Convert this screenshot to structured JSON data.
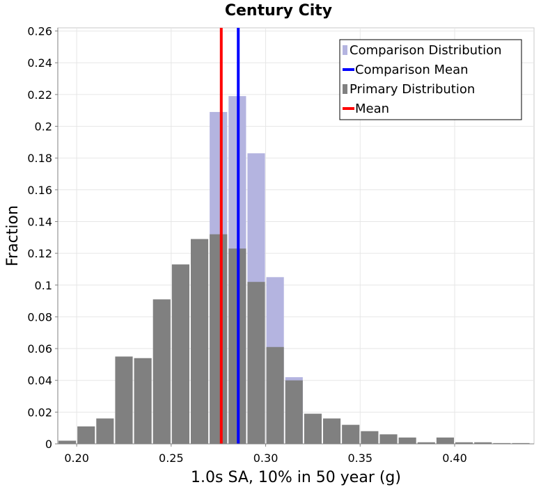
{
  "chart_data": {
    "type": "bar",
    "title": "Century City",
    "xlabel": "1.0s SA, 10% in 50 year (g)",
    "ylabel": "Fraction",
    "xlim": [
      0.19,
      0.442
    ],
    "ylim": [
      0,
      0.262
    ],
    "bin_width": 0.01,
    "x_ticks": [
      0.2,
      0.25,
      0.3,
      0.35,
      0.4
    ],
    "x_tick_labels": [
      "0.20",
      "0.25",
      "0.30",
      "0.35",
      "0.40"
    ],
    "y_ticks": [
      0,
      0.02,
      0.04,
      0.06,
      0.08,
      0.1,
      0.12,
      0.14,
      0.16,
      0.18,
      0.2,
      0.22,
      0.24,
      0.26
    ],
    "y_tick_labels": [
      "0",
      "0.02",
      "0.04",
      "0.06",
      "0.08",
      "0.1",
      "0.12",
      "0.14",
      "0.16",
      "0.18",
      "0.2",
      "0.22",
      "0.24",
      "0.26"
    ],
    "grid": true,
    "legend_position": "top-right",
    "series": [
      {
        "name": "Comparison Distribution",
        "kind": "histogram",
        "color": "#b4b4e0",
        "bins": [
          {
            "x": 0.275,
            "y": 0.209
          },
          {
            "x": 0.285,
            "y": 0.219
          },
          {
            "x": 0.295,
            "y": 0.183
          },
          {
            "x": 0.305,
            "y": 0.105
          },
          {
            "x": 0.315,
            "y": 0.042
          }
        ]
      },
      {
        "name": "Comparison Mean",
        "kind": "vline",
        "color": "#0000ff",
        "x": 0.2855
      },
      {
        "name": "Primary Distribution",
        "kind": "histogram",
        "color": "#808080",
        "bins": [
          {
            "x": 0.195,
            "y": 0.002
          },
          {
            "x": 0.205,
            "y": 0.011
          },
          {
            "x": 0.215,
            "y": 0.016
          },
          {
            "x": 0.225,
            "y": 0.055
          },
          {
            "x": 0.235,
            "y": 0.054
          },
          {
            "x": 0.245,
            "y": 0.091
          },
          {
            "x": 0.255,
            "y": 0.113
          },
          {
            "x": 0.265,
            "y": 0.129
          },
          {
            "x": 0.275,
            "y": 0.132
          },
          {
            "x": 0.285,
            "y": 0.123
          },
          {
            "x": 0.295,
            "y": 0.102
          },
          {
            "x": 0.305,
            "y": 0.061
          },
          {
            "x": 0.315,
            "y": 0.04
          },
          {
            "x": 0.325,
            "y": 0.019
          },
          {
            "x": 0.335,
            "y": 0.016
          },
          {
            "x": 0.345,
            "y": 0.012
          },
          {
            "x": 0.355,
            "y": 0.008
          },
          {
            "x": 0.365,
            "y": 0.006
          },
          {
            "x": 0.375,
            "y": 0.004
          },
          {
            "x": 0.385,
            "y": 0.001
          },
          {
            "x": 0.395,
            "y": 0.004
          },
          {
            "x": 0.405,
            "y": 0.001
          },
          {
            "x": 0.415,
            "y": 0.001
          },
          {
            "x": 0.425,
            "y": 0.0005
          },
          {
            "x": 0.435,
            "y": 0.0005
          }
        ]
      },
      {
        "name": "Mean",
        "kind": "vline",
        "color": "#ff0000",
        "x": 0.2765
      }
    ]
  }
}
